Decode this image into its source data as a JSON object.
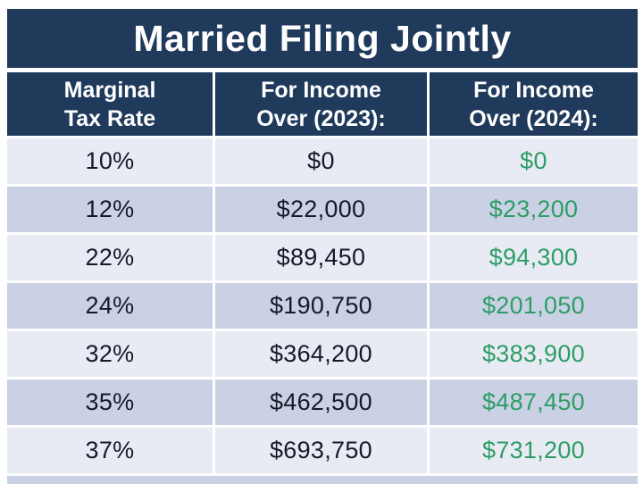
{
  "title": "Married Filing Jointly",
  "columns": [
    "Marginal\nTax Rate",
    "For Income\nOver (2023):",
    "For Income\nOver (2024):"
  ],
  "rows": [
    {
      "rate": "10%",
      "income_2023": "$0",
      "income_2024": "$0"
    },
    {
      "rate": "12%",
      "income_2023": "$22,000",
      "income_2024": "$23,200"
    },
    {
      "rate": "22%",
      "income_2023": "$89,450",
      "income_2024": "$94,300"
    },
    {
      "rate": "24%",
      "income_2023": "$190,750",
      "income_2024": "$201,050"
    },
    {
      "rate": "32%",
      "income_2023": "$364,200",
      "income_2024": "$383,900"
    },
    {
      "rate": "35%",
      "income_2023": "$462,500",
      "income_2024": "$487,450"
    },
    {
      "rate": "37%",
      "income_2023": "$693,750",
      "income_2024": "$731,200"
    }
  ],
  "colors": {
    "navy": "#203a5c",
    "row_light": "#e9ebf4",
    "row_dark": "#cbd1e4",
    "green": "#2d9d66",
    "text_dark": "#16192a"
  },
  "chart_data": {
    "type": "table",
    "title": "Married Filing Jointly",
    "categories": [
      "10%",
      "12%",
      "22%",
      "24%",
      "32%",
      "35%",
      "37%"
    ],
    "series": [
      {
        "name": "For Income Over (2023):",
        "values": [
          0,
          22000,
          89450,
          190750,
          364200,
          462500,
          693750
        ]
      },
      {
        "name": "For Income Over (2024):",
        "values": [
          0,
          23200,
          94300,
          201050,
          383900,
          487450,
          731200
        ]
      }
    ]
  }
}
